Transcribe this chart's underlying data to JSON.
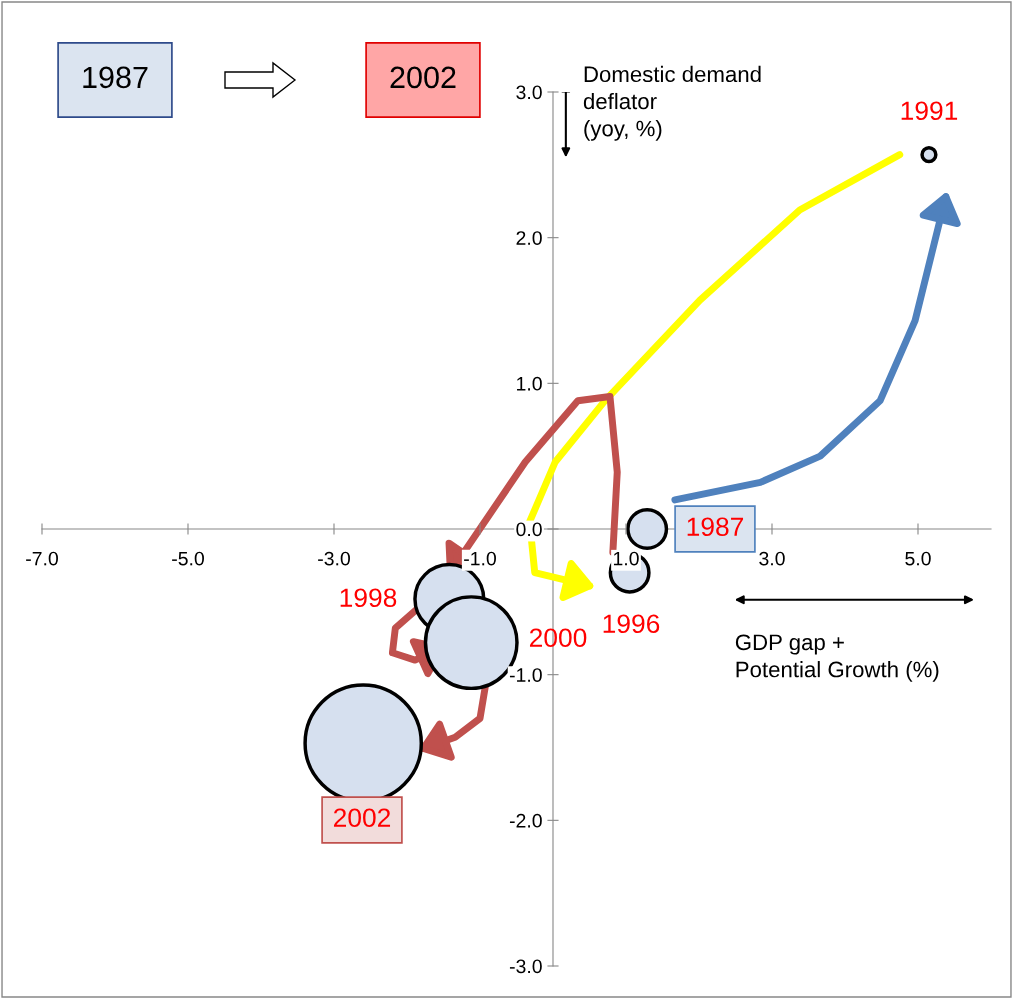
{
  "chart_data": {
    "type": "bubble",
    "xlabel": "GDP gap +\nPotential Growth (%)",
    "ylabel": "Domestic demand\ndeflator\n(yoy, %)",
    "x": [
      1.29,
      1.05,
      -1.42,
      -1.12,
      -2.6,
      5.15
    ],
    "values": [
      0.0,
      -0.3,
      -0.48,
      -0.78,
      -1.47,
      2.57
    ],
    "sizes": [
      0.11,
      0.11,
      0.35,
      0.62,
      1,
      0.014
    ],
    "color": "#d6e0ef",
    "xlim": [
      -7,
      6
    ],
    "ylim": [
      -3,
      3
    ],
    "xticks": [
      {
        "value": -7,
        "label": "-7.0"
      },
      {
        "value": -5,
        "label": "-5.0"
      },
      {
        "value": -3,
        "label": "-3.0"
      },
      {
        "value": -1,
        "label": "-1.0"
      },
      {
        "value": 1,
        "label": "1.0"
      },
      {
        "value": 3,
        "label": "3.0"
      },
      {
        "value": 5,
        "label": "5.0"
      }
    ],
    "yticks": [
      {
        "value": -3,
        "label": "-3.0"
      },
      {
        "value": -2,
        "label": "-2.0"
      },
      {
        "value": -1,
        "label": "-1.0"
      },
      {
        "value": 0,
        "label": "0.0"
      },
      {
        "value": 1,
        "label": "1.0"
      },
      {
        "value": 2,
        "label": "2.0"
      },
      {
        "value": 3,
        "label": "3.0"
      }
    ],
    "grid": false,
    "annotations": [
      "1987",
      "2002",
      "1991",
      "1998",
      "2000",
      "1996",
      "1987",
      "2002"
    ]
  }
}
